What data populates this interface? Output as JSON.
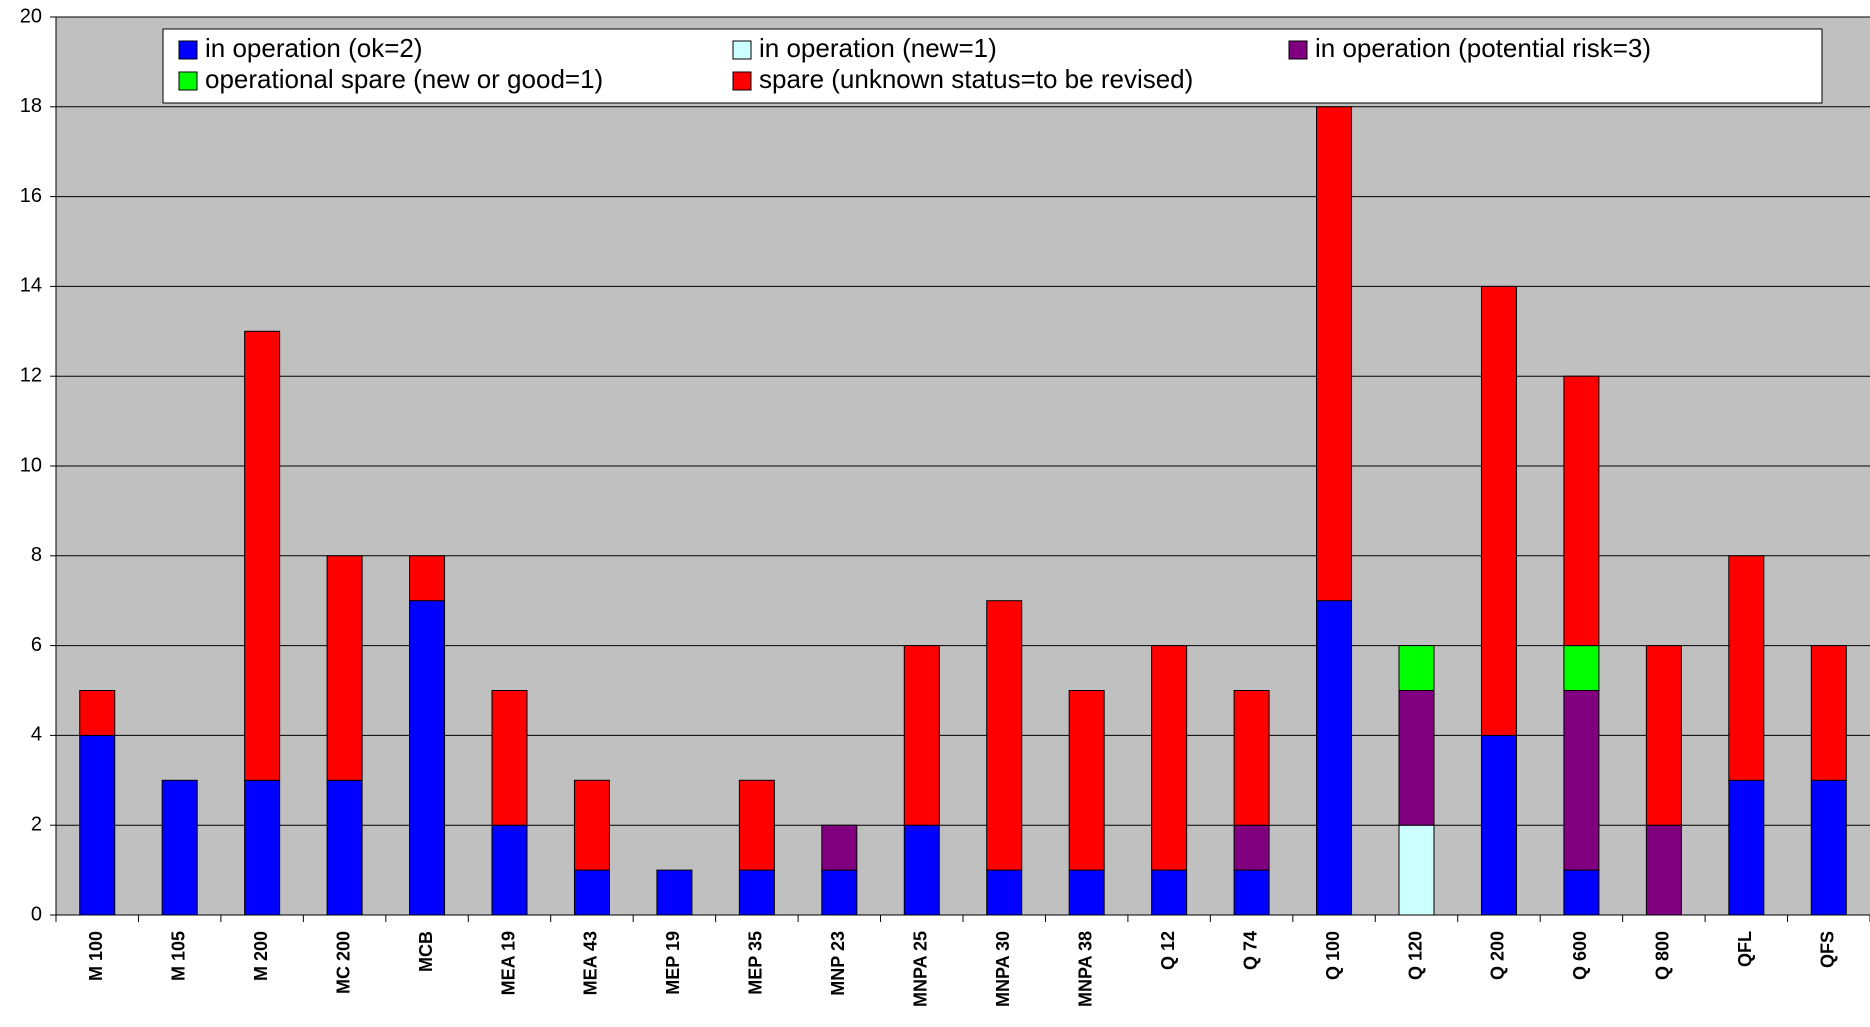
{
  "chart_data": {
    "type": "stacked_bar",
    "categories": [
      "M 100",
      "M 105",
      "M 200",
      "MC 200",
      "MCB",
      "MEA 19",
      "MEA 43",
      "MEP 19",
      "MEP 35",
      "MNP 23",
      "MNPA 25",
      "MNPA 30",
      "MNPA 38",
      "Q 12",
      "Q 74",
      "Q 100",
      "Q 120",
      "Q 200",
      "Q 600",
      "Q 800",
      "QFL",
      "QFS"
    ],
    "series": [
      {
        "name": "in operation (ok=2)",
        "color": "#0000ff",
        "values": [
          4,
          3,
          3,
          3,
          7,
          2,
          1,
          1,
          1,
          1,
          2,
          1,
          1,
          1,
          1,
          7,
          0,
          4,
          1,
          0,
          3,
          3
        ]
      },
      {
        "name": "in operation (new=1)",
        "color": "#ccffff",
        "values": [
          0,
          0,
          0,
          0,
          0,
          0,
          0,
          0,
          0,
          0,
          0,
          0,
          0,
          0,
          0,
          0,
          2,
          0,
          0,
          0,
          0,
          0
        ]
      },
      {
        "name": "in operation (potential risk=3)",
        "color": "#800080",
        "values": [
          0,
          0,
          0,
          0,
          0,
          0,
          0,
          0,
          0,
          1,
          0,
          0,
          0,
          0,
          1,
          0,
          3,
          0,
          4,
          2,
          0,
          0
        ]
      },
      {
        "name": "operational spare (new or good=1)",
        "color": "#00ff00",
        "values": [
          0,
          0,
          0,
          0,
          0,
          0,
          0,
          0,
          0,
          0,
          0,
          0,
          0,
          0,
          0,
          0,
          1,
          0,
          1,
          0,
          0,
          0
        ]
      },
      {
        "name": "spare (unknown status=to be revised)",
        "color": "#ff0000",
        "values": [
          1,
          0,
          10,
          5,
          1,
          3,
          2,
          0,
          2,
          0,
          4,
          6,
          4,
          5,
          3,
          11,
          0,
          10,
          6,
          4,
          5,
          3
        ]
      }
    ],
    "ylim": [
      0,
      20
    ],
    "yticks": [
      0,
      2,
      4,
      6,
      8,
      10,
      12,
      14,
      16,
      18,
      20
    ],
    "grid": true,
    "legend": "top"
  }
}
